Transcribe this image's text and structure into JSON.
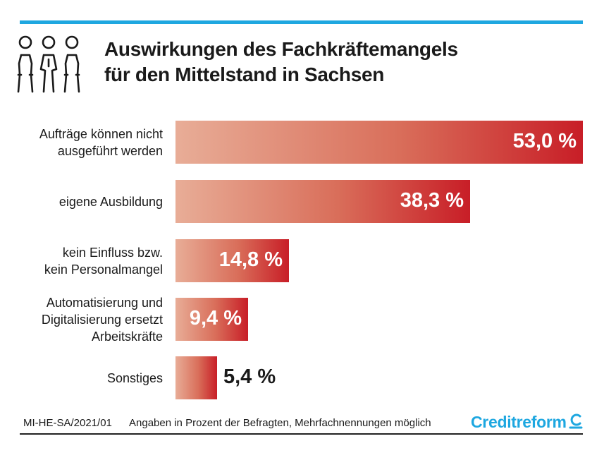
{
  "title": {
    "line1": "Auswirkungen des Fachkräftemangels",
    "line2": "für den Mittelstand in Sachsen"
  },
  "chart_data": {
    "type": "bar",
    "orientation": "horizontal",
    "title": "Auswirkungen des Fachkräftemangels für den Mittelstand in Sachsen",
    "categories": [
      "Aufträge können nicht\nausgeführt werden",
      "eigene Ausbildung",
      "kein Einfluss bzw.\nkein Personalmangel",
      "Automatisierung und\nDigitalisierung ersetzt\nArbeitskräfte",
      "Sonstiges"
    ],
    "values": [
      53.0,
      38.3,
      14.8,
      9.4,
      5.4
    ],
    "value_labels": [
      "53,0 %",
      "38,3 %",
      "14,8 %",
      "9,4 %",
      "5,4 %"
    ],
    "unit": "%",
    "xlim": [
      0,
      53.0
    ],
    "colors": {
      "bar_start": "#e8ad97",
      "bar_end": "#c81e27"
    }
  },
  "footer": {
    "code": "MI-HE-SA/2021/01",
    "note": "Angaben in Prozent der Befragten, Mehrfachnennungen möglich"
  },
  "brand": {
    "name": "Creditreform",
    "color": "#1ea7e0"
  },
  "accent_line_color": "#1ea7e0"
}
